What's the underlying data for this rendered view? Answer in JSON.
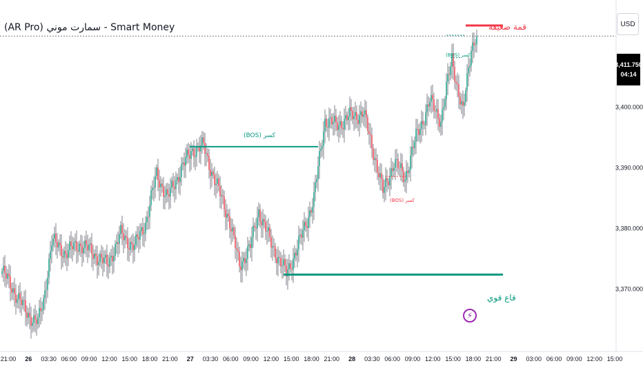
{
  "header": {
    "title": "(AR Pro) سمارت موني - Smart Money",
    "currency": "USD"
  },
  "price_tag": {
    "price": "3,411.750",
    "countdown": "04:14"
  },
  "annotations": {
    "weak_high": "قمة ضعيفة",
    "strong_low": "قاع قوي",
    "bos_1": "(BOS) كسر",
    "bos_2": "(BOS) كسر",
    "bos_3": "(BOS) كسر"
  },
  "icons": {
    "alert": "lightning-icon"
  },
  "colors": {
    "bull": "#089981",
    "bear": "#f23645",
    "wick": "#2a2e39",
    "level_green": "#089981",
    "level_red": "#f23645",
    "alert": "#9c27b0"
  },
  "chart_data": {
    "type": "candlestick",
    "y_axis": {
      "ticks": [
        3400,
        3390,
        3380,
        3370
      ],
      "tick_labels": [
        "3,400.000",
        "3,390.000",
        "3,380.000",
        "3,370.000"
      ],
      "range": [
        3362,
        3416
      ],
      "position": "right"
    },
    "x_axis": {
      "tick_labels": [
        "21:00",
        "26",
        "03:30",
        "06:00",
        "09:00",
        "12:00",
        "15:00",
        "18:00",
        "21:00",
        "27",
        "03:30",
        "06:00",
        "09:00",
        "12:00",
        "15:00",
        "18:00",
        "21:00",
        "28",
        "03:30",
        "06:00",
        "09:00",
        "12:00",
        "15:00",
        "18:00",
        "21:00",
        "29",
        "03:00",
        "06:00",
        "09:00",
        "12:00",
        "15:00"
      ],
      "bold_labels": [
        "26",
        "27",
        "28",
        "29"
      ]
    },
    "current_price": 3411.75,
    "levels": [
      {
        "label": "(BOS) كسر",
        "price": 3393.5,
        "kind": "bos_bull"
      },
      {
        "label": "قاع قوي",
        "price": 3372.4,
        "kind": "strong_low"
      },
      {
        "label": "قمة ضعيفة",
        "price": 3413.5,
        "kind": "weak_high"
      }
    ],
    "approx_path": [
      {
        "i": 0,
        "p": 3373.0
      },
      {
        "i": 8,
        "p": 3370.0
      },
      {
        "i": 18,
        "p": 3366.0
      },
      {
        "i": 26,
        "p": 3364.5
      },
      {
        "i": 30,
        "p": 3368.0
      },
      {
        "i": 36,
        "p": 3378.0
      },
      {
        "i": 46,
        "p": 3376.0
      },
      {
        "i": 56,
        "p": 3377.5
      },
      {
        "i": 66,
        "p": 3376.0
      },
      {
        "i": 76,
        "p": 3374.0
      },
      {
        "i": 86,
        "p": 3379.0
      },
      {
        "i": 96,
        "p": 3377.0
      },
      {
        "i": 104,
        "p": 3381.0
      },
      {
        "i": 112,
        "p": 3389.0
      },
      {
        "i": 120,
        "p": 3385.0
      },
      {
        "i": 130,
        "p": 3390.0
      },
      {
        "i": 138,
        "p": 3393.0
      },
      {
        "i": 146,
        "p": 3393.5
      },
      {
        "i": 154,
        "p": 3388.0
      },
      {
        "i": 164,
        "p": 3382.0
      },
      {
        "i": 172,
        "p": 3374.0
      },
      {
        "i": 180,
        "p": 3377.0
      },
      {
        "i": 186,
        "p": 3383.0
      },
      {
        "i": 194,
        "p": 3378.0
      },
      {
        "i": 206,
        "p": 3372.5
      },
      {
        "i": 216,
        "p": 3378.0
      },
      {
        "i": 226,
        "p": 3385.0
      },
      {
        "i": 234,
        "p": 3398.0
      },
      {
        "i": 242,
        "p": 3397.0
      },
      {
        "i": 252,
        "p": 3398.5
      },
      {
        "i": 262,
        "p": 3399.0
      },
      {
        "i": 270,
        "p": 3392.0
      },
      {
        "i": 276,
        "p": 3386.0
      },
      {
        "i": 284,
        "p": 3391.0
      },
      {
        "i": 292,
        "p": 3388.5
      },
      {
        "i": 300,
        "p": 3395.0
      },
      {
        "i": 310,
        "p": 3401.0
      },
      {
        "i": 318,
        "p": 3398.0
      },
      {
        "i": 326,
        "p": 3408.0
      },
      {
        "i": 334,
        "p": 3399.0
      },
      {
        "i": 340,
        "p": 3410.0
      },
      {
        "i": 344,
        "p": 3412.0
      }
    ]
  }
}
